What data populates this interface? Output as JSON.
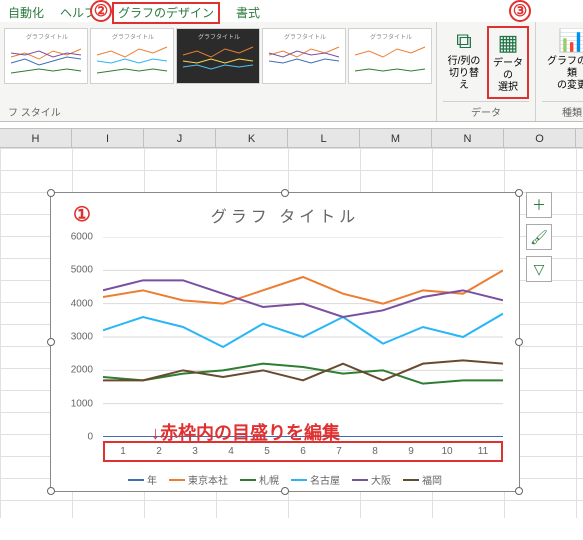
{
  "ribbon": {
    "tabs": [
      "自動化",
      "ヘルプ",
      "グラフのデザイン",
      "書式"
    ],
    "active_tab_index": 2,
    "style_label": "フ スタイル",
    "groups": {
      "data": {
        "label": "データ",
        "switch_btn": "行/列の\n切り替え",
        "select_btn": "データの\n選択"
      },
      "type": {
        "label": "種類",
        "change_btn": "グラフの種類\nの変更"
      }
    }
  },
  "markers": {
    "m1": "①",
    "m2": "②",
    "m3": "③"
  },
  "columns": [
    "H",
    "I",
    "J",
    "K",
    "L",
    "M",
    "N",
    "O"
  ],
  "chart": {
    "title": "グラフ タイトル",
    "ymax": 6000,
    "ystep": 1000,
    "yticks": [
      0,
      1000,
      2000,
      3000,
      4000,
      5000,
      6000
    ],
    "xlabels": [
      "1",
      "2",
      "3",
      "4",
      "5",
      "6",
      "7",
      "8",
      "9",
      "10",
      "11"
    ],
    "series": [
      {
        "name": "年",
        "color": "#3b6fb6",
        "values": [
          0,
          0,
          0,
          0,
          0,
          0,
          0,
          0,
          0,
          0,
          0
        ]
      },
      {
        "name": "東京本社",
        "color": "#ed7d31",
        "values": [
          4200,
          4400,
          4100,
          4000,
          4400,
          4800,
          4300,
          4000,
          4400,
          4300,
          5000
        ]
      },
      {
        "name": "札幌",
        "color": "#2e7d32",
        "values": [
          1800,
          1700,
          1900,
          2000,
          2200,
          2100,
          1900,
          2000,
          1600,
          1700,
          1700
        ]
      },
      {
        "name": "名古屋",
        "color": "#29b6f6",
        "values": [
          3200,
          3600,
          3300,
          2700,
          3400,
          3000,
          3600,
          2800,
          3300,
          3000,
          3700
        ]
      },
      {
        "name": "大阪",
        "color": "#7b4fa0",
        "values": [
          4400,
          4700,
          4700,
          4300,
          3900,
          4000,
          3600,
          3800,
          4200,
          4400,
          4100
        ]
      },
      {
        "name": "福岡",
        "color": "#6a4a2e",
        "values": [
          1700,
          1700,
          2000,
          1800,
          2000,
          1700,
          2200,
          1700,
          2200,
          2300,
          2200
        ]
      }
    ],
    "annotation": "↓赤枠内の目盛りを編集"
  },
  "side_icons": [
    "＋",
    "🖌",
    "▽"
  ],
  "colors": {
    "accent_red": "#e03131",
    "excel_green": "#217346"
  },
  "thumb_title": "グラフタイトル"
}
